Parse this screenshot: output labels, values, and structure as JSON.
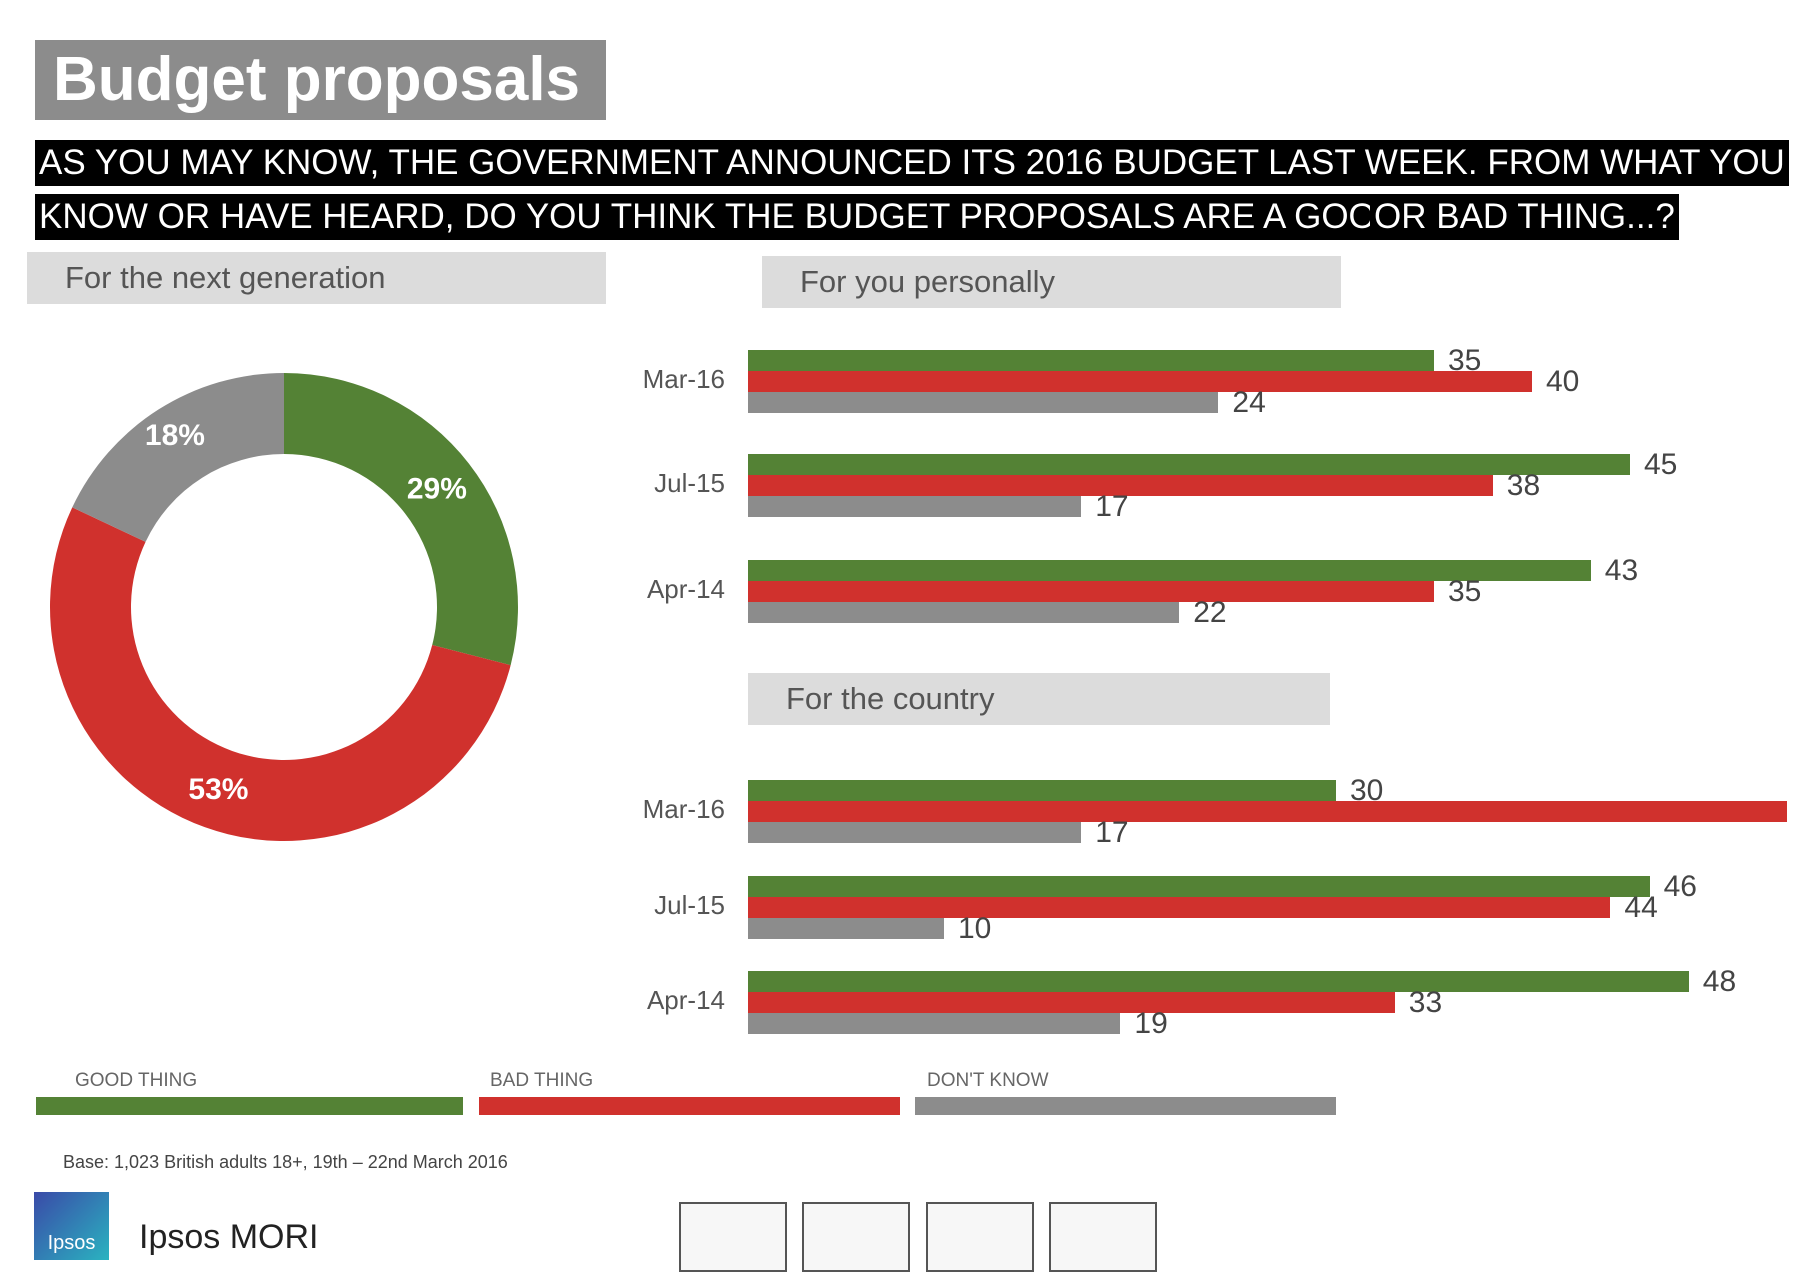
{
  "title": "Budget proposals",
  "question": {
    "line1": "AS YOU MAY KNOW, THE GOVERNMENT ANNOUNCED ITS 2016 BUDGET LAST WEEK. FROM WHAT YOU",
    "line2a": "KNOW OR HAVE HEARD, DO YOU THINK THE BUDGET PROPOSALS ARE A GOOD",
    "line2b": "OR BAD THING...?"
  },
  "colors": {
    "good": "#548235",
    "bad": "#d0312d",
    "dk": "#8c8c8c"
  },
  "chart_data": [
    {
      "type": "pie",
      "title": "For the next generation",
      "donut": true,
      "slices": [
        {
          "label": "Good thing",
          "value": 29,
          "text": "29%"
        },
        {
          "label": "Bad thing",
          "value": 53,
          "text": "53%"
        },
        {
          "label": "Don't know",
          "value": 18,
          "text": "18%"
        }
      ]
    },
    {
      "type": "bar",
      "orientation": "horizontal",
      "title": "For you personally",
      "categories": [
        "Mar-16",
        "Jul-15",
        "Apr-14"
      ],
      "series": [
        {
          "name": "GOOD THING",
          "values": [
            35,
            45,
            43
          ]
        },
        {
          "name": "BAD THING",
          "values": [
            40,
            38,
            35
          ]
        },
        {
          "name": "DON'T KNOW",
          "values": [
            24,
            17,
            22
          ]
        }
      ]
    },
    {
      "type": "bar",
      "orientation": "horizontal",
      "title": "For the country",
      "categories": [
        "Mar-16",
        "Jul-15",
        "Apr-14"
      ],
      "series": [
        {
          "name": "GOOD THING",
          "values": [
            30,
            46,
            48
          ]
        },
        {
          "name": "BAD THING",
          "values": [
            53,
            44,
            33
          ]
        },
        {
          "name": "DON'T KNOW",
          "values": [
            17,
            10,
            19
          ]
        }
      ]
    }
  ],
  "legend": [
    "GOOD THING",
    "BAD THING",
    "DON'T KNOW"
  ],
  "base": "Base: 1,023 British adults 18+, 19th – 22nd March 2016",
  "logo": {
    "badge": "Ipsos",
    "name": "Ipsos MORI"
  }
}
